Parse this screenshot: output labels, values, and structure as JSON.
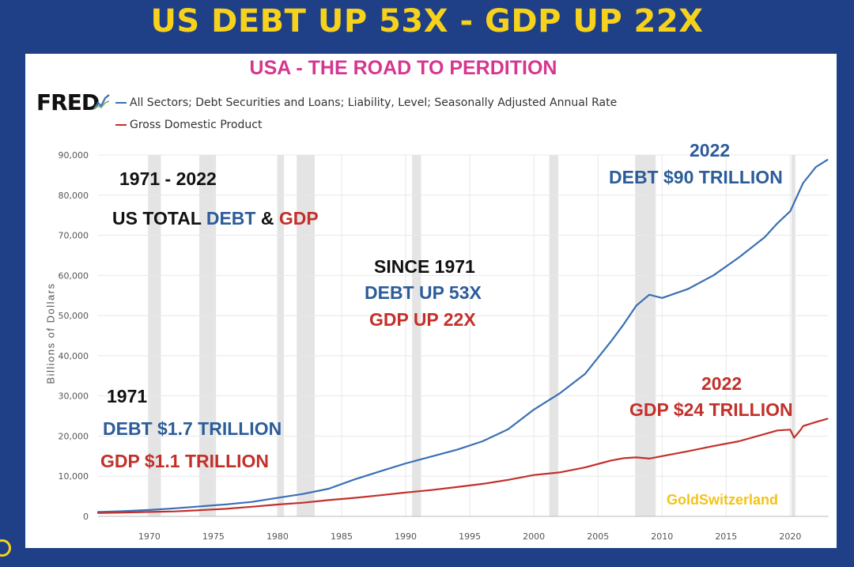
{
  "headline": "US DEBT UP 53X - GDP UP 22X",
  "subtitle": "USA - THE ROAD TO PERDITION",
  "source_logo": "FRED",
  "watermark": "GoldSwitzerland",
  "annotations": {
    "range_years": "1971 - 2022",
    "total_prefix": "US TOTAL ",
    "total_debt": "DEBT",
    "total_amp": " & ",
    "total_gdp": "GDP",
    "since_title": "SINCE 1971",
    "since_debt": "DEBT UP 53X",
    "since_gdp": "GDP UP 22X",
    "start_year": "1971",
    "start_debt": "DEBT $1.7 TRILLION",
    "start_gdp": "GDP $1.1 TRILLION",
    "end_debt_year": "2022",
    "end_debt": "DEBT $90 TRILLION",
    "end_gdp_year": "2022",
    "end_gdp": "GDP $24 TRILLION"
  },
  "colors": {
    "debt": "#3b6fb5",
    "gdp": "#c3302a",
    "recession": "#e4e4e4",
    "grid": "#e8e8e8"
  },
  "chart_data": {
    "type": "line",
    "ylabel": "Billions of Dollars",
    "xlim": [
      1966,
      2023
    ],
    "ylim": [
      0,
      90000
    ],
    "x_ticks": [
      "1970",
      "1975",
      "1980",
      "1985",
      "1990",
      "1995",
      "2000",
      "2005",
      "2010",
      "2015",
      "2020"
    ],
    "y_ticks": [
      "0",
      "10,000",
      "20,000",
      "30,000",
      "40,000",
      "50,000",
      "60,000",
      "70,000",
      "80,000",
      "90,000"
    ],
    "grid": true,
    "legend_position": "top-left",
    "recessions": [
      [
        1969.9,
        1970.9
      ],
      [
        1973.9,
        1975.2
      ],
      [
        1980.0,
        1980.5
      ],
      [
        1981.5,
        1982.9
      ],
      [
        1990.5,
        1991.2
      ],
      [
        2001.2,
        2001.9
      ],
      [
        2007.9,
        2009.5
      ],
      [
        2020.1,
        2020.4
      ]
    ],
    "series": [
      {
        "name": "All Sectors; Debt Securities and Loans; Liability, Level; Seasonally Adjusted Annual Rate",
        "key": "debt",
        "x": [
          1966,
          1968,
          1970,
          1972,
          1974,
          1976,
          1978,
          1980,
          1982,
          1984,
          1986,
          1988,
          1990,
          1992,
          1994,
          1996,
          1998,
          2000,
          2002,
          2004,
          2006,
          2007,
          2008,
          2009,
          2010,
          2011,
          2012,
          2014,
          2016,
          2018,
          2019,
          2020,
          2021,
          2022,
          2022.9
        ],
        "y": [
          1100,
          1300,
          1600,
          2000,
          2500,
          3000,
          3600,
          4600,
          5600,
          6900,
          9200,
          11200,
          13200,
          14900,
          16600,
          18700,
          21700,
          26600,
          30600,
          35500,
          43500,
          47800,
          52500,
          55200,
          54400,
          55500,
          56600,
          60000,
          64500,
          69500,
          73000,
          76000,
          83000,
          87000,
          88800
        ]
      },
      {
        "name": "Gross Domestic Product",
        "key": "gdp",
        "x": [
          1966,
          1968,
          1970,
          1972,
          1974,
          1976,
          1978,
          1980,
          1982,
          1984,
          1986,
          1988,
          1990,
          1992,
          1994,
          1996,
          1998,
          2000,
          2002,
          2004,
          2006,
          2007,
          2008,
          2009,
          2010,
          2012,
          2014,
          2016,
          2018,
          2019,
          2020,
          2020.3,
          2020.8,
          2021,
          2022,
          2022.9
        ],
        "y": [
          850,
          950,
          1100,
          1250,
          1550,
          1900,
          2400,
          2950,
          3400,
          4050,
          4600,
          5250,
          5950,
          6550,
          7300,
          8100,
          9100,
          10300,
          10950,
          12200,
          13900,
          14500,
          14700,
          14400,
          15000,
          16200,
          17500,
          18700,
          20500,
          21400,
          21600,
          19600,
          21500,
          22500,
          23500,
          24300
        ]
      }
    ]
  }
}
